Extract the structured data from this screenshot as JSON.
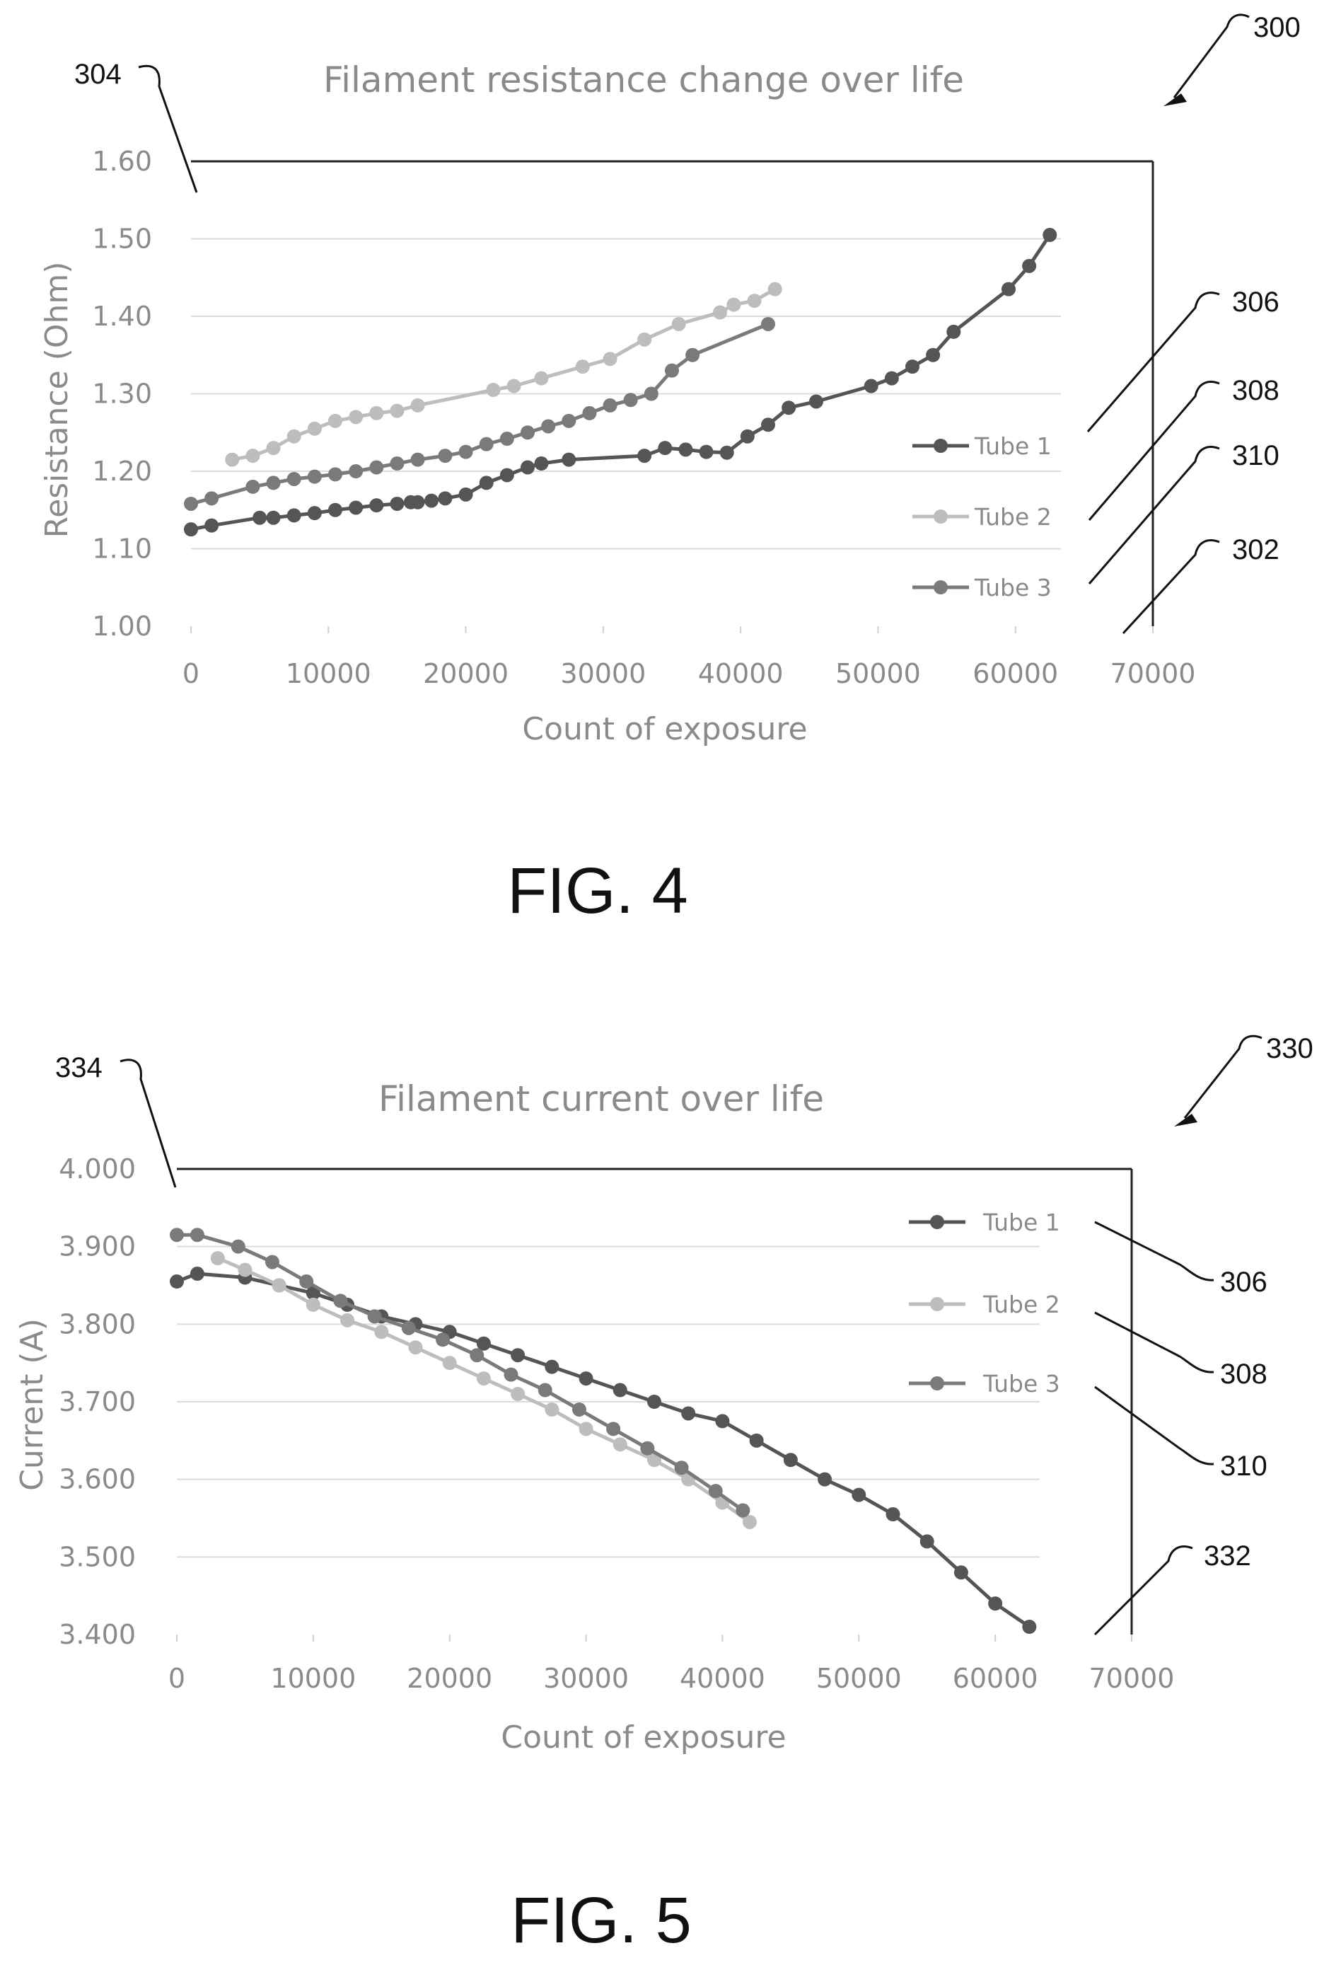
{
  "figures": [
    {
      "figure_label": "FIG. 4",
      "ref_main": "300",
      "ref_y_axis": "304",
      "ref_x_axis": "302",
      "ref_tube1": "306",
      "ref_tube2": "308",
      "ref_tube3": "310"
    },
    {
      "figure_label": "FIG. 5",
      "ref_main": "330",
      "ref_y_axis": "334",
      "ref_x_axis": "332",
      "ref_tube1": "306",
      "ref_tube2": "308",
      "ref_tube3": "310"
    }
  ],
  "colors": {
    "tube1": "#555555",
    "tube2": "#bdbdbd",
    "tube3": "#7a7a7a",
    "text": "#8a8a8a",
    "grid": "#dcdcdc"
  },
  "chart_data": [
    {
      "type": "line",
      "title": "Filament resistance change over life",
      "xlabel": "Count of exposure",
      "ylabel": "Resistance (Ohm)",
      "xlim": [
        0,
        70000
      ],
      "ylim": [
        1.0,
        1.6
      ],
      "xticks": [
        "0",
        "10000",
        "20000",
        "30000",
        "40000",
        "50000",
        "60000",
        "70000"
      ],
      "yticks": [
        "1.00",
        "1.10",
        "1.20",
        "1.30",
        "1.40",
        "1.50",
        "1.60"
      ],
      "grid": "horizontal",
      "legend_position": "right",
      "series": [
        {
          "name": "Tube 1",
          "color": "#555555",
          "x": [
            0,
            1500,
            5000,
            6000,
            7500,
            9000,
            10500,
            12000,
            13500,
            15000,
            16000,
            16500,
            17500,
            18500,
            20000,
            21500,
            23000,
            24500,
            25500,
            27500,
            33000,
            34500,
            36000,
            37500,
            39000,
            40500,
            42000,
            43500,
            45500,
            49500,
            51000,
            52500,
            54000,
            55500,
            59500,
            61000,
            62500
          ],
          "y": [
            1.125,
            1.13,
            1.14,
            1.14,
            1.143,
            1.146,
            1.15,
            1.153,
            1.156,
            1.158,
            1.16,
            1.16,
            1.162,
            1.165,
            1.17,
            1.185,
            1.195,
            1.205,
            1.21,
            1.215,
            1.22,
            1.23,
            1.228,
            1.225,
            1.224,
            1.245,
            1.26,
            1.282,
            1.29,
            1.31,
            1.32,
            1.335,
            1.35,
            1.38,
            1.435,
            1.465,
            1.505
          ]
        },
        {
          "name": "Tube 2",
          "color": "#bdbdbd",
          "x": [
            3000,
            4500,
            6000,
            7500,
            9000,
            10500,
            12000,
            13500,
            15000,
            16500,
            22000,
            23500,
            25500,
            28500,
            30500,
            33000,
            35500,
            38500,
            39500,
            41000,
            42500
          ],
          "y": [
            1.215,
            1.22,
            1.23,
            1.245,
            1.255,
            1.265,
            1.27,
            1.275,
            1.278,
            1.285,
            1.305,
            1.31,
            1.32,
            1.335,
            1.345,
            1.37,
            1.39,
            1.405,
            1.415,
            1.42,
            1.435
          ]
        },
        {
          "name": "Tube 3",
          "color": "#7a7a7a",
          "x": [
            0,
            1500,
            4500,
            6000,
            7500,
            9000,
            10500,
            12000,
            13500,
            15000,
            16500,
            18500,
            20000,
            21500,
            23000,
            24500,
            26000,
            27500,
            29000,
            30500,
            32000,
            33500,
            35000,
            36500,
            42000
          ],
          "y": [
            1.158,
            1.165,
            1.18,
            1.185,
            1.19,
            1.193,
            1.196,
            1.2,
            1.205,
            1.21,
            1.215,
            1.22,
            1.225,
            1.235,
            1.242,
            1.25,
            1.258,
            1.265,
            1.275,
            1.285,
            1.292,
            1.3,
            1.33,
            1.35,
            1.39
          ]
        }
      ]
    },
    {
      "type": "line",
      "title": "Filament current over life",
      "xlabel": "Count of exposure",
      "ylabel": "Current (A)",
      "xlim": [
        0,
        70000
      ],
      "ylim": [
        3.4,
        4.0
      ],
      "xticks": [
        "0",
        "10000",
        "20000",
        "30000",
        "40000",
        "50000",
        "60000",
        "70000"
      ],
      "yticks": [
        "3.400",
        "3.500",
        "3.600",
        "3.700",
        "3.800",
        "3.900",
        "4.000"
      ],
      "grid": "horizontal",
      "legend_position": "right",
      "series": [
        {
          "name": "Tube 1",
          "color": "#555555",
          "x": [
            0,
            1500,
            5000,
            7500,
            10000,
            12500,
            15000,
            17500,
            20000,
            22500,
            25000,
            27500,
            30000,
            32500,
            35000,
            37500,
            40000,
            42500,
            45000,
            47500,
            50000,
            52500,
            55000,
            57500,
            60000,
            62500
          ],
          "y": [
            3.855,
            3.865,
            3.86,
            3.85,
            3.84,
            3.825,
            3.81,
            3.8,
            3.79,
            3.775,
            3.76,
            3.745,
            3.73,
            3.715,
            3.7,
            3.685,
            3.675,
            3.65,
            3.625,
            3.6,
            3.58,
            3.555,
            3.52,
            3.48,
            3.44,
            3.41
          ]
        },
        {
          "name": "Tube 2",
          "color": "#bdbdbd",
          "x": [
            3000,
            5000,
            7500,
            10000,
            12500,
            15000,
            17500,
            20000,
            22500,
            25000,
            27500,
            30000,
            32500,
            35000,
            37500,
            40000,
            42000
          ],
          "y": [
            3.885,
            3.87,
            3.85,
            3.825,
            3.805,
            3.79,
            3.77,
            3.75,
            3.73,
            3.71,
            3.69,
            3.665,
            3.645,
            3.625,
            3.6,
            3.57,
            3.545
          ]
        },
        {
          "name": "Tube 3",
          "color": "#7a7a7a",
          "x": [
            0,
            1500,
            4500,
            7000,
            9500,
            12000,
            14500,
            17000,
            19500,
            22000,
            24500,
            27000,
            29500,
            32000,
            34500,
            37000,
            39500,
            41500
          ],
          "y": [
            3.915,
            3.915,
            3.9,
            3.88,
            3.855,
            3.83,
            3.81,
            3.795,
            3.78,
            3.76,
            3.735,
            3.715,
            3.69,
            3.665,
            3.64,
            3.615,
            3.585,
            3.56
          ]
        }
      ]
    }
  ]
}
